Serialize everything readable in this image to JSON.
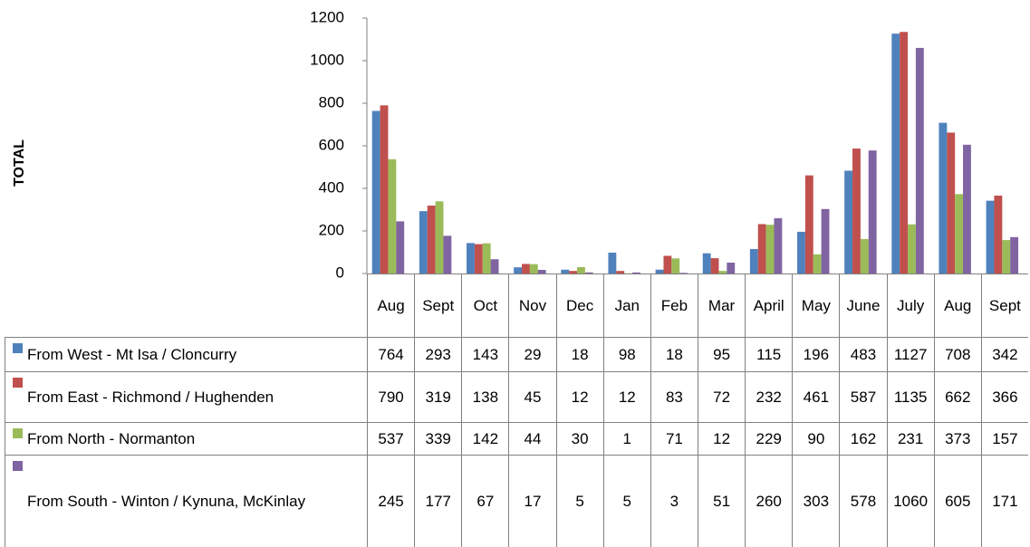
{
  "chart_data": {
    "type": "bar",
    "y_label": "TOTAL",
    "categories": [
      "Aug",
      "Sept",
      "Oct",
      "Nov",
      "Dec",
      "Jan",
      "Feb",
      "Mar",
      "April",
      "May",
      "June",
      "July",
      "Aug",
      "Sept"
    ],
    "series": [
      {
        "name": "From West - Mt Isa / Cloncurry",
        "color": "#4f81bd",
        "values": [
          764,
          293,
          143,
          29,
          18,
          98,
          18,
          95,
          115,
          196,
          483,
          1127,
          708,
          342
        ]
      },
      {
        "name": "From East - Richmond / Hughenden",
        "color": "#c0504d",
        "values": [
          790,
          319,
          138,
          45,
          12,
          12,
          83,
          72,
          232,
          461,
          587,
          1135,
          662,
          366
        ]
      },
      {
        "name": "From  North - Normanton",
        "color": "#9bbb59",
        "values": [
          537,
          339,
          142,
          44,
          30,
          1,
          71,
          12,
          229,
          90,
          162,
          231,
          373,
          157
        ]
      },
      {
        "name": "From South - Winton / Kynuna, McKinlay",
        "color": "#8064a2",
        "values": [
          245,
          177,
          67,
          17,
          5,
          5,
          3,
          51,
          260,
          303,
          578,
          1060,
          605,
          171
        ]
      }
    ],
    "ylim": [
      0,
      1200
    ],
    "yticks": [
      0,
      200,
      400,
      600,
      800,
      1000,
      1200
    ]
  }
}
